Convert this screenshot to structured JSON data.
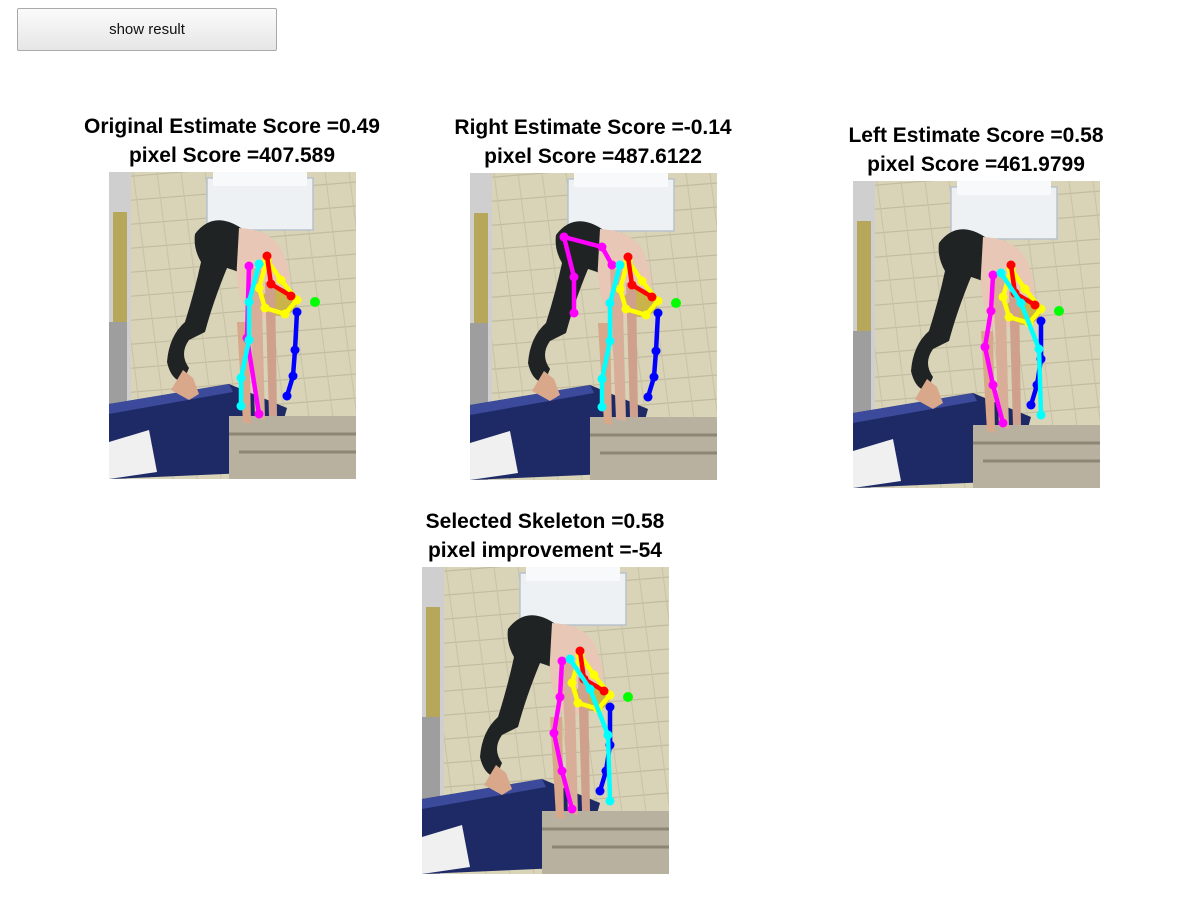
{
  "controls": {
    "show_result_label": "show result"
  },
  "panels": {
    "original": {
      "title_line1": "Original Estimate Score =0.49",
      "title_line2": "pixel Score =407.589",
      "skeleton": "original"
    },
    "right": {
      "title_line1": "Right Estimate Score =-0.14",
      "title_line2": "pixel Score =487.6122",
      "skeleton": "right"
    },
    "left": {
      "title_line1": "Left Estimate Score =0.58",
      "title_line2": "pixel Score =461.9799",
      "skeleton": "left"
    },
    "selected": {
      "title_line1": "Selected Skeleton =0.58",
      "title_line2": "pixel improvement =-54",
      "skeleton": "left"
    }
  },
  "colors": {
    "magenta_limb": "#ff00ff",
    "cyan_limb": "#00ffff",
    "blue_limb": "#0000ff",
    "yellow_limb": "#ffff00",
    "red_limb": "#ff0000",
    "green_joint": "#00ff00"
  }
}
